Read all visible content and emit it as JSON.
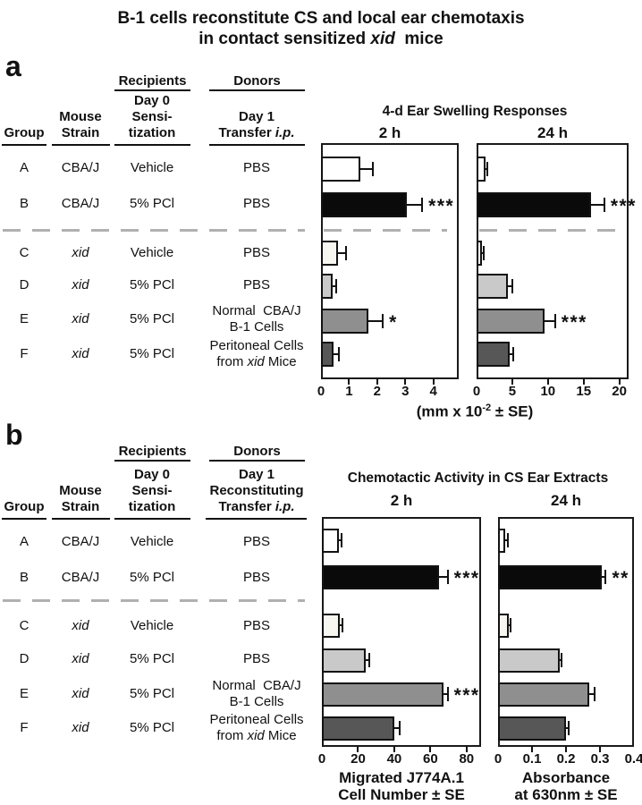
{
  "figure_title": {
    "line1": "B-1 cells reconstitute CS and local ear chemotaxis",
    "line2": "in contact sensitized xid  mice"
  },
  "panel_a": {
    "label": "a",
    "table": {
      "recipients_header": "Recipients",
      "donors_header": "Donors",
      "col_group": [
        "Group"
      ],
      "col_strain": [
        "Mouse",
        "Strain"
      ],
      "col_sens": [
        "Day 0",
        "Sensi-",
        "tization"
      ],
      "col_donor": [
        "Day 1",
        "Transfer i.p."
      ],
      "rows": [
        {
          "group": "A",
          "strain": "CBA/J",
          "sensitization": "Vehicle",
          "donor": [
            "PBS"
          ]
        },
        {
          "group": "B",
          "strain": "CBA/J",
          "sensitization": "5% PCl",
          "donor": [
            "PBS"
          ]
        },
        {
          "group": "C",
          "strain": "xid",
          "sensitization": "Vehicle",
          "donor": [
            "PBS"
          ]
        },
        {
          "group": "D",
          "strain": "xid",
          "sensitization": "5% PCl",
          "donor": [
            "PBS"
          ]
        },
        {
          "group": "E",
          "strain": "xid",
          "sensitization": "5% PCl",
          "donor": [
            "Normal  CBA/J",
            "B-1 Cells"
          ]
        },
        {
          "group": "F",
          "strain": "xid",
          "sensitization": "5% PCl",
          "donor": [
            "Peritoneal Cells",
            "from xid Mice"
          ]
        }
      ]
    },
    "charts_title": "4-d Ear Swelling Responses",
    "xlabel": {
      "pre": "(mm x 10",
      "sup": "-2",
      "post": " ± SE)"
    }
  },
  "panel_b": {
    "label": "b",
    "table": {
      "recipients_header": "Recipients",
      "donors_header": "Donors",
      "col_group": [
        "Group"
      ],
      "col_strain": [
        "Mouse",
        "Strain"
      ],
      "col_sens": [
        "Day 0",
        "Sensi-",
        "tization"
      ],
      "col_donor": [
        "Day 1",
        "Reconstituting",
        "Transfer i.p."
      ],
      "rows": [
        {
          "group": "A",
          "strain": "CBA/J",
          "sensitization": "Vehicle",
          "donor": [
            "PBS"
          ]
        },
        {
          "group": "B",
          "strain": "CBA/J",
          "sensitization": "5% PCl",
          "donor": [
            "PBS"
          ]
        },
        {
          "group": "C",
          "strain": "xid",
          "sensitization": "Vehicle",
          "donor": [
            "PBS"
          ]
        },
        {
          "group": "D",
          "strain": "xid",
          "sensitization": "5% PCl",
          "donor": [
            "PBS"
          ]
        },
        {
          "group": "E",
          "strain": "xid",
          "sensitization": "5% PCl",
          "donor": [
            "Normal  CBA/J",
            "B-1 Cells"
          ]
        },
        {
          "group": "F",
          "strain": "xid",
          "sensitization": "5% PCl",
          "donor": [
            "Peritoneal Cells",
            "from xid Mice"
          ]
        }
      ]
    },
    "charts_title": "Chemotactic Activity in CS Ear Extracts",
    "xlabel_left": [
      "Migrated J774A.1",
      "Cell Number ± SE"
    ],
    "xlabel_right": [
      "Absorbance",
      "at 630nm ± SE"
    ]
  },
  "bar_styles": [
    {
      "group": "A",
      "fill": "#ffffff"
    },
    {
      "group": "B",
      "fill": "#0a0a0a"
    },
    {
      "group": "C",
      "fill": "#f7f6f1",
      "pattern": "stipple"
    },
    {
      "group": "D",
      "fill": "#c9c9c9"
    },
    {
      "group": "E",
      "fill": "#8f8f8f"
    },
    {
      "group": "F",
      "fill": "#575757"
    }
  ],
  "colors": {
    "separator_dash": "#b0b0b0",
    "axis": "#1a1a1a",
    "bar_border": "#121212"
  },
  "chart_data": [
    {
      "id": "a-2h",
      "type": "bar",
      "orientation": "horizontal",
      "subplot_title": "2 h",
      "categories": [
        "A",
        "B",
        "C",
        "D",
        "E",
        "F"
      ],
      "values": [
        1.4,
        3.05,
        0.6,
        0.4,
        1.7,
        0.45
      ],
      "errors": [
        0.45,
        0.55,
        0.3,
        0.15,
        0.5,
        0.2
      ],
      "significance": [
        "",
        "***",
        "",
        "",
        "*",
        ""
      ],
      "xticks": [
        0,
        1,
        2,
        3,
        4
      ],
      "xlim": [
        0,
        4.9
      ]
    },
    {
      "id": "a-24h",
      "type": "bar",
      "orientation": "horizontal",
      "subplot_title": "24 h",
      "categories": [
        "A",
        "B",
        "C",
        "D",
        "E",
        "F"
      ],
      "values": [
        1.2,
        16.1,
        0.8,
        4.4,
        9.5,
        4.6
      ],
      "errors": [
        0.3,
        1.8,
        0.25,
        0.6,
        1.5,
        0.5
      ],
      "significance": [
        "",
        "***",
        "",
        "",
        "***",
        ""
      ],
      "xticks": [
        0,
        5,
        10,
        15,
        20
      ],
      "xlim": [
        0,
        21.3
      ]
    },
    {
      "id": "b-2h",
      "type": "bar",
      "orientation": "horizontal",
      "subplot_title": "2 h",
      "categories": [
        "A",
        "B",
        "C",
        "D",
        "E",
        "F"
      ],
      "values": [
        9.5,
        65,
        10,
        24,
        67,
        40
      ],
      "errors": [
        1.2,
        4.5,
        1.2,
        2,
        2.5,
        3
      ],
      "significance": [
        "",
        "***",
        "",
        "",
        "***",
        ""
      ],
      "xticks": [
        0,
        20,
        40,
        60,
        80
      ],
      "xlim": [
        0,
        88
      ]
    },
    {
      "id": "b-24h",
      "type": "bar",
      "orientation": "horizontal",
      "subplot_title": "24 h",
      "categories": [
        "A",
        "B",
        "C",
        "D",
        "E",
        "F"
      ],
      "values": [
        0.022,
        0.305,
        0.032,
        0.182,
        0.268,
        0.2
      ],
      "errors": [
        0.006,
        0.012,
        0.006,
        0.006,
        0.015,
        0.008
      ],
      "significance": [
        "",
        "**",
        "",
        "",
        "",
        ""
      ],
      "xticks": [
        0,
        0.1,
        0.2,
        0.3,
        0.4
      ],
      "xlim": [
        0,
        0.4
      ]
    }
  ]
}
